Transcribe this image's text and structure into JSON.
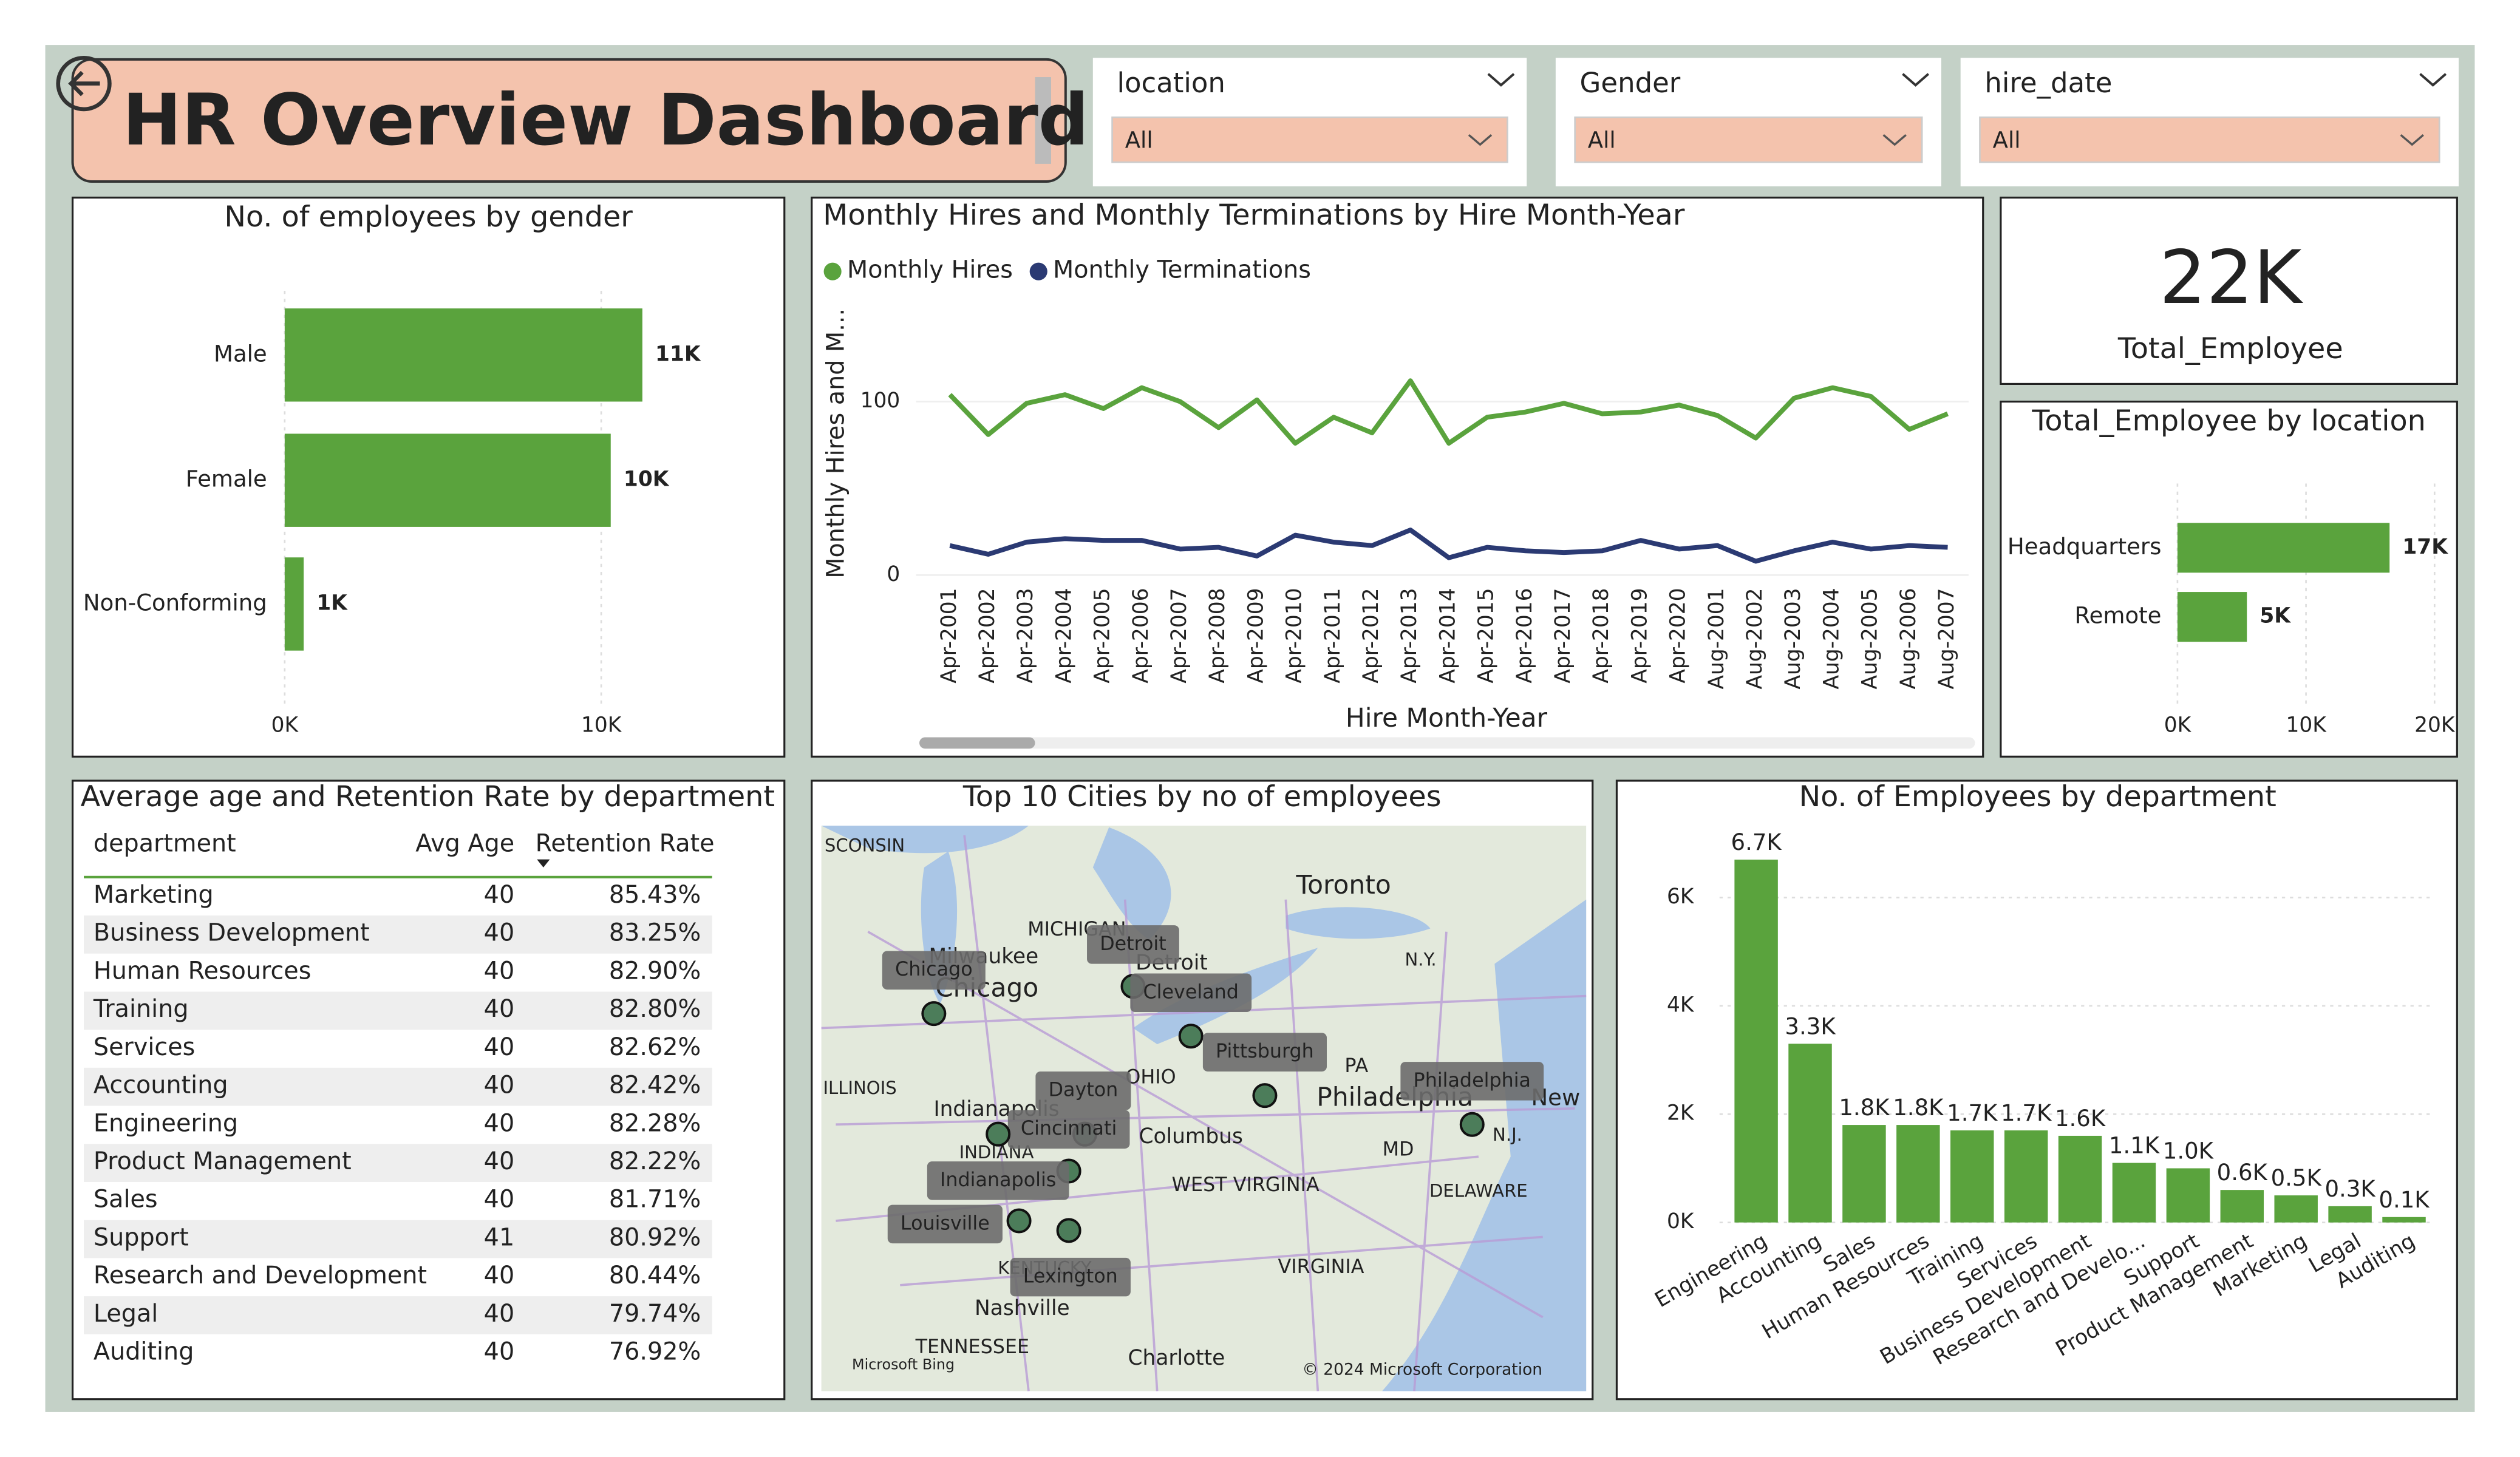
{
  "header": {
    "title": "HR Overview Dashboard"
  },
  "filters": [
    {
      "label": "location",
      "value": "All"
    },
    {
      "label": "Gender",
      "value": "All"
    },
    {
      "label": "hire_date",
      "value": "All"
    }
  ],
  "chart_data": [
    {
      "type": "bar",
      "orientation": "horizontal",
      "title": "No. of employees by gender",
      "categories": [
        "Male",
        "Female",
        "Non-Conforming"
      ],
      "values": [
        11300,
        10300,
        600
      ],
      "value_labels": [
        "11K",
        "10K",
        "1K"
      ],
      "color": "#5aa33d",
      "xlim": [
        0,
        15000
      ],
      "xticks": [
        {
          "value": 0,
          "label": "0K"
        },
        {
          "value": 10000,
          "label": "10K"
        }
      ]
    },
    {
      "type": "line",
      "title": "Monthly Hires and Monthly Terminations by Hire Month-Year",
      "xlabel": "Hire Month-Year",
      "ylabel": "Monthly Hires and M...",
      "categories": [
        "Apr-2001",
        "Apr-2002",
        "Apr-2003",
        "Apr-2004",
        "Apr-2005",
        "Apr-2006",
        "Apr-2007",
        "Apr-2008",
        "Apr-2009",
        "Apr-2010",
        "Apr-2011",
        "Apr-2012",
        "Apr-2013",
        "Apr-2014",
        "Apr-2015",
        "Apr-2016",
        "Apr-2017",
        "Apr-2018",
        "Apr-2019",
        "Apr-2020",
        "Aug-2001",
        "Aug-2002",
        "Aug-2003",
        "Aug-2004",
        "Aug-2005",
        "Aug-2006",
        "Aug-2007"
      ],
      "series": [
        {
          "name": "Monthly Hires",
          "color": "#5aa33d",
          "values": [
            104,
            81,
            99,
            104,
            96,
            108,
            100,
            85,
            101,
            76,
            91,
            82,
            112,
            76,
            91,
            94,
            99,
            93,
            94,
            98,
            92,
            79,
            102,
            108,
            103,
            84,
            93
          ]
        },
        {
          "name": "Monthly Terminations",
          "color": "#2b3a73",
          "values": [
            17,
            12,
            19,
            21,
            20,
            20,
            15,
            16,
            11,
            23,
            19,
            17,
            26,
            10,
            16,
            14,
            13,
            14,
            20,
            15,
            17,
            8,
            14,
            19,
            15,
            17,
            16
          ]
        }
      ],
      "ylim": [
        0,
        150
      ],
      "yticks": [
        0,
        100
      ]
    },
    {
      "type": "card",
      "value": 22000,
      "value_label": "22K",
      "label": "Total_Employee"
    },
    {
      "type": "bar",
      "orientation": "horizontal",
      "title": "Total_Employee by location",
      "categories": [
        "Headquarters",
        "Remote"
      ],
      "values": [
        16500,
        5400
      ],
      "value_labels": [
        "17K",
        "5K"
      ],
      "color": "#5aa33d",
      "xlim": [
        0,
        20000
      ],
      "xticks": [
        {
          "value": 0,
          "label": "0K"
        },
        {
          "value": 10000,
          "label": "10K"
        },
        {
          "value": 20000,
          "label": "20K"
        }
      ]
    },
    {
      "type": "bar",
      "orientation": "vertical",
      "title": "No. of Employees by department",
      "categories": [
        "Engineering",
        "Accounting",
        "Sales",
        "Human Resources",
        "Training",
        "Services",
        "Business Development",
        "Research and Develo...",
        "Support",
        "Product Management",
        "Marketing",
        "Legal",
        "Auditing"
      ],
      "values": [
        6700,
        3300,
        1800,
        1800,
        1700,
        1700,
        1600,
        1100,
        1000,
        600,
        500,
        300,
        100
      ],
      "value_labels": [
        "6.7K",
        "3.3K",
        "1.8K",
        "1.8K",
        "1.7K",
        "1.7K",
        "1.6K",
        "1.1K",
        "1.0K",
        "0.6K",
        "0.5K",
        "0.3K",
        "0.1K"
      ],
      "color": "#5aa33d",
      "ylim": [
        0,
        7000
      ],
      "yticks": [
        {
          "value": 0,
          "label": "0K"
        },
        {
          "value": 2000,
          "label": "2K"
        },
        {
          "value": 4000,
          "label": "4K"
        },
        {
          "value": 6000,
          "label": "6K"
        }
      ]
    }
  ],
  "table": {
    "title": "Average age and Retention Rate by department",
    "columns": [
      "department",
      "Avg Age",
      "Retention Rate"
    ],
    "rows": [
      [
        "Marketing",
        40,
        "85.43%"
      ],
      [
        "Business Development",
        40,
        "83.25%"
      ],
      [
        "Human Resources",
        40,
        "82.90%"
      ],
      [
        "Training",
        40,
        "82.80%"
      ],
      [
        "Services",
        40,
        "82.62%"
      ],
      [
        "Accounting",
        40,
        "82.42%"
      ],
      [
        "Engineering",
        40,
        "82.28%"
      ],
      [
        "Product Management",
        40,
        "82.22%"
      ],
      [
        "Sales",
        40,
        "81.71%"
      ],
      [
        "Support",
        41,
        "80.92%"
      ],
      [
        "Research and Development",
        40,
        "80.44%"
      ],
      [
        "Legal",
        40,
        "79.74%"
      ],
      [
        "Auditing",
        40,
        "76.92%"
      ]
    ]
  },
  "map": {
    "title": "Top 10 Cities by no of employees",
    "cities": [
      "Chicago",
      "Detroit",
      "Cleveland",
      "Pittsburgh",
      "Philadelphia",
      "Dayton",
      "Cincinnati",
      "Indianapolis",
      "Louisville",
      "Lexington"
    ],
    "base_labels": [
      "SCONSIN",
      "Toronto",
      "MICHIGAN",
      "Milwaukee",
      "Chicago",
      "Detroit",
      "N.Y.",
      "OHIO",
      "ILLINOIS",
      "Indianapolis",
      "INDIANA",
      "Columbus",
      "PA",
      "Philadelphia",
      "New",
      "MD",
      "N.J.",
      "WEST VIRGINIA",
      "DELAWARE",
      "KENTUCKY",
      "VIRGINIA",
      "Nashville",
      "TENNESSEE",
      "Charlotte",
      "Microsoft Bing",
      "© 2024 Microsoft Corporation"
    ]
  }
}
